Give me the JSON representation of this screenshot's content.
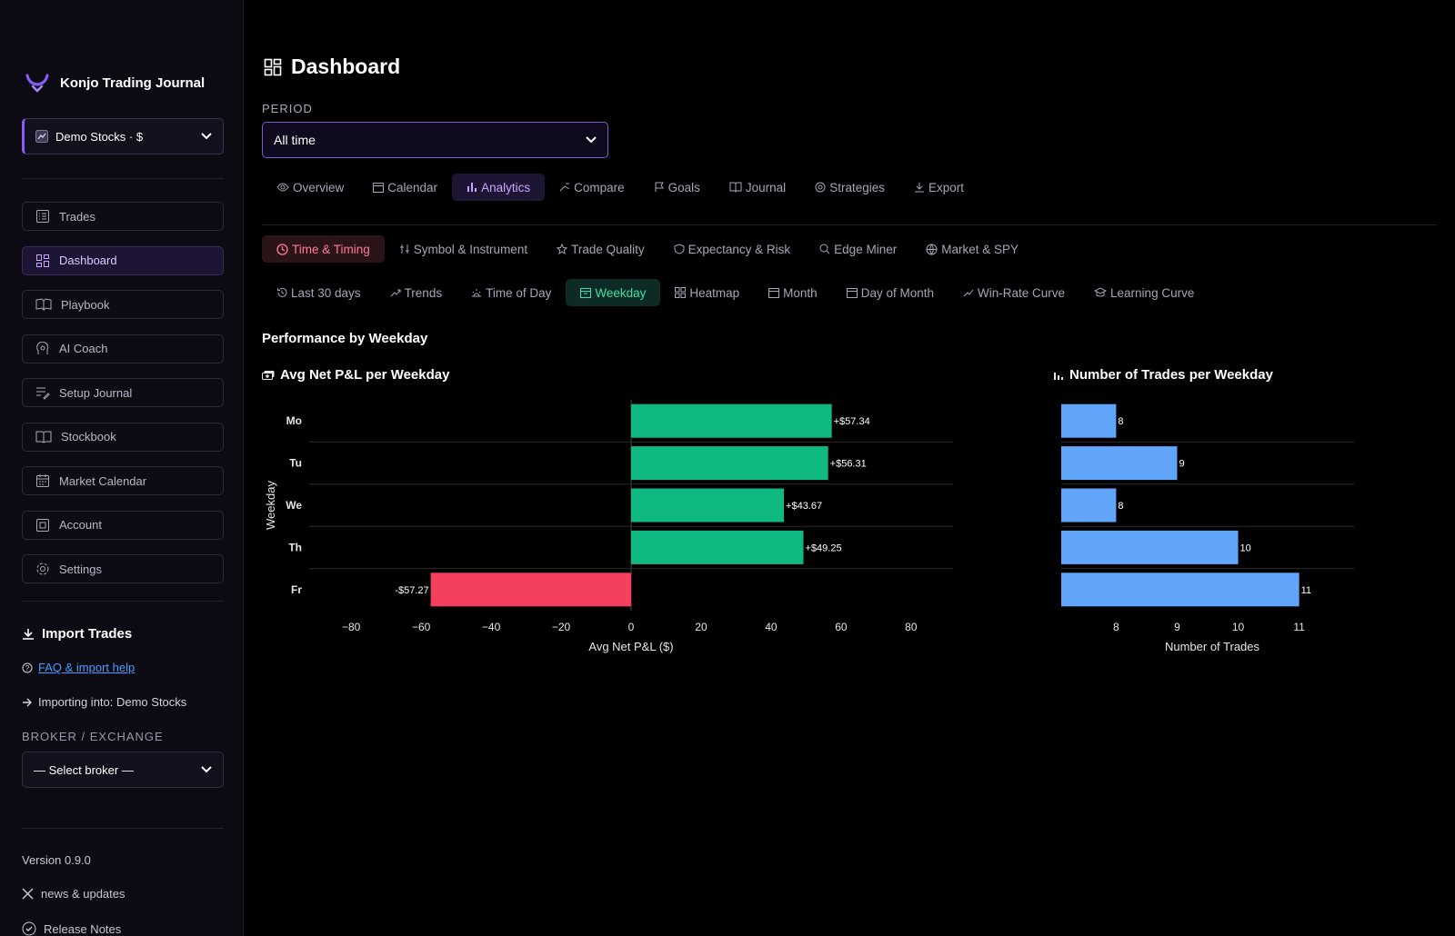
{
  "app": {
    "name": "Konjo Trading Journal"
  },
  "account_select": {
    "value": "Demo Stocks · $"
  },
  "nav": [
    {
      "label": "Trades",
      "icon": "list-icon",
      "active": false
    },
    {
      "label": "Dashboard",
      "icon": "grid-icon",
      "active": true
    },
    {
      "label": "Playbook",
      "icon": "book-open-icon",
      "active": false
    },
    {
      "label": "AI Coach",
      "icon": "brain-icon",
      "active": false
    },
    {
      "label": "Setup Journal",
      "icon": "edit-list-icon",
      "active": false
    },
    {
      "label": "Stockbook",
      "icon": "book-icon",
      "active": false
    },
    {
      "label": "Market Calendar",
      "icon": "calendar-icon",
      "active": false
    },
    {
      "label": "Account",
      "icon": "wallet-icon",
      "active": false
    },
    {
      "label": "Settings",
      "icon": "gear-icon",
      "active": false
    }
  ],
  "import": {
    "title": "Import Trades",
    "faq_link": "FAQ & import help",
    "importing_into": "Importing into: Demo Stocks",
    "broker_label": "BROKER / EXCHANGE",
    "broker_select": "— Select broker —"
  },
  "footer": {
    "version": "Version 0.9.0",
    "news": "news & updates",
    "release_notes": "Release Notes"
  },
  "page": {
    "title": "Dashboard"
  },
  "period": {
    "label": "PERIOD",
    "value": "All time"
  },
  "main_tabs": [
    {
      "label": "Overview",
      "icon": "eye-icon",
      "active": false
    },
    {
      "label": "Calendar",
      "icon": "calendar-icon",
      "active": false
    },
    {
      "label": "Analytics",
      "icon": "bar-chart-icon",
      "active": true
    },
    {
      "label": "Compare",
      "icon": "compare-icon",
      "active": false
    },
    {
      "label": "Goals",
      "icon": "flag-icon",
      "active": false
    },
    {
      "label": "Journal",
      "icon": "book-icon",
      "active": false
    },
    {
      "label": "Strategies",
      "icon": "target-icon",
      "active": false
    },
    {
      "label": "Export",
      "icon": "download-icon",
      "active": false
    }
  ],
  "category_tabs": [
    {
      "label": "Time & Timing",
      "icon": "clock-icon",
      "active": true
    },
    {
      "label": "Symbol & Instrument",
      "icon": "symbol-icon",
      "active": false
    },
    {
      "label": "Trade Quality",
      "icon": "star-icon",
      "active": false
    },
    {
      "label": "Expectancy & Risk",
      "icon": "shield-icon",
      "active": false
    },
    {
      "label": "Edge Miner",
      "icon": "search-icon",
      "active": false
    },
    {
      "label": "Market & SPY",
      "icon": "globe-icon",
      "active": false
    }
  ],
  "sub_tabs": [
    {
      "label": "Last 30 days",
      "icon": "history-icon",
      "active": false
    },
    {
      "label": "Trends",
      "icon": "trend-icon",
      "active": false
    },
    {
      "label": "Time of Day",
      "icon": "sunrise-icon",
      "active": false
    },
    {
      "label": "Weekday",
      "icon": "calendar-icon",
      "active": true
    },
    {
      "label": "Heatmap",
      "icon": "grid-icon",
      "active": false
    },
    {
      "label": "Month",
      "icon": "calendar-icon",
      "active": false
    },
    {
      "label": "Day of Month",
      "icon": "calendar-icon",
      "active": false
    },
    {
      "label": "Win-Rate Curve",
      "icon": "trend-icon",
      "active": false
    },
    {
      "label": "Learning Curve",
      "icon": "graduation-cap-icon",
      "active": false
    }
  ],
  "section": {
    "title": "Performance by Weekday"
  },
  "colors": {
    "positive": "#10b981",
    "negative": "#f43f5e",
    "trades": "#60a5fa",
    "accent": "#8b5cf6"
  },
  "chart_data": [
    {
      "type": "bar",
      "orientation": "horizontal",
      "title": "Avg Net P&L per Weekday",
      "categories": [
        "Mo",
        "Tu",
        "We",
        "Th",
        "Fr"
      ],
      "values": [
        57.34,
        56.31,
        43.67,
        49.25,
        -57.27
      ],
      "data_labels": [
        "+$57.34",
        "+$56.31",
        "+$43.67",
        "+$49.25",
        "-$57.27"
      ],
      "xlabel": "Avg Net P&L ($)",
      "ylabel": "Weekday",
      "xlim": [
        -92,
        92
      ],
      "xticks": [
        -80,
        -60,
        -40,
        -20,
        0,
        20,
        40,
        60,
        80
      ],
      "xtick_labels": [
        "−80",
        "−60",
        "−40",
        "−20",
        "0",
        "20",
        "40",
        "60",
        "80"
      ],
      "grid": "horizontal"
    },
    {
      "type": "bar",
      "orientation": "horizontal",
      "title": "Number of Trades per Weekday",
      "categories": [
        "Mo",
        "Tu",
        "We",
        "Th",
        "Fr"
      ],
      "values": [
        8,
        9,
        8,
        10,
        11
      ],
      "data_labels": [
        "8",
        "9",
        "8",
        "10",
        "11"
      ],
      "xlabel": "Number of Trades",
      "xlim": [
        7.1,
        11.9
      ],
      "xticks": [
        8,
        9,
        10,
        11
      ],
      "xtick_labels": [
        "8",
        "9",
        "10",
        "11"
      ],
      "grid": "horizontal"
    }
  ]
}
